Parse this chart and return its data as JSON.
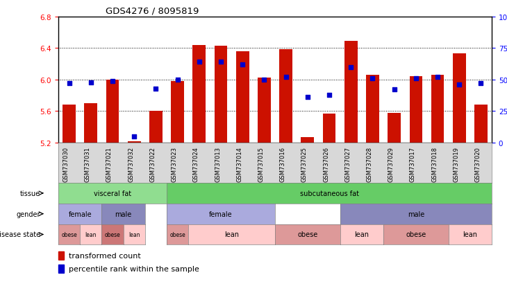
{
  "title": "GDS4276 / 8095819",
  "samples": [
    "GSM737030",
    "GSM737031",
    "GSM737021",
    "GSM737032",
    "GSM737022",
    "GSM737023",
    "GSM737024",
    "GSM737013",
    "GSM737014",
    "GSM737015",
    "GSM737016",
    "GSM737025",
    "GSM737026",
    "GSM737027",
    "GSM737028",
    "GSM737029",
    "GSM737017",
    "GSM737018",
    "GSM737019",
    "GSM737020"
  ],
  "bar_values": [
    5.68,
    5.7,
    6.0,
    5.22,
    5.6,
    5.98,
    6.44,
    6.43,
    6.36,
    6.03,
    6.39,
    5.27,
    5.57,
    6.49,
    6.06,
    5.58,
    6.04,
    6.06,
    6.33,
    5.68
  ],
  "percentile_values": [
    47,
    48,
    49,
    5,
    43,
    50,
    64,
    64,
    62,
    50,
    52,
    36,
    38,
    60,
    51,
    42,
    51,
    52,
    46,
    47
  ],
  "ymin": 5.2,
  "ymax": 6.8,
  "yticks": [
    5.2,
    5.6,
    6.0,
    6.4,
    6.8
  ],
  "pct_ticks": [
    0,
    25,
    50,
    75,
    100
  ],
  "bar_color": "#cc1100",
  "dot_color": "#0000cc",
  "tissue_groups": [
    {
      "label": "visceral fat",
      "start": 0,
      "end": 4,
      "color": "#90dd90"
    },
    {
      "label": "subcutaneous fat",
      "start": 5,
      "end": 19,
      "color": "#66cc66"
    }
  ],
  "gender_groups": [
    {
      "label": "female",
      "start": 0,
      "end": 1,
      "color": "#aaaadd"
    },
    {
      "label": "male",
      "start": 2,
      "end": 3,
      "color": "#8888bb"
    },
    {
      "label": "female",
      "start": 5,
      "end": 9,
      "color": "#aaaadd"
    },
    {
      "label": "male",
      "start": 13,
      "end": 19,
      "color": "#8888bb"
    }
  ],
  "disease_groups": [
    {
      "label": "obese",
      "start": 0,
      "end": 0,
      "color": "#dd9999"
    },
    {
      "label": "lean",
      "start": 1,
      "end": 1,
      "color": "#ffcccc"
    },
    {
      "label": "obese",
      "start": 2,
      "end": 2,
      "color": "#cc7777"
    },
    {
      "label": "lean",
      "start": 3,
      "end": 3,
      "color": "#ffcccc"
    },
    {
      "label": "obese",
      "start": 5,
      "end": 5,
      "color": "#dd9999"
    },
    {
      "label": "lean",
      "start": 6,
      "end": 9,
      "color": "#ffcccc"
    },
    {
      "label": "obese",
      "start": 10,
      "end": 12,
      "color": "#dd9999"
    },
    {
      "label": "lean",
      "start": 13,
      "end": 14,
      "color": "#ffcccc"
    },
    {
      "label": "obese",
      "start": 15,
      "end": 17,
      "color": "#dd9999"
    },
    {
      "label": "lean",
      "start": 18,
      "end": 19,
      "color": "#ffcccc"
    }
  ],
  "row_labels": [
    "tissue",
    "gender",
    "disease state"
  ],
  "legend_items": [
    {
      "label": "transformed count",
      "color": "#cc1100"
    },
    {
      "label": "percentile rank within the sample",
      "color": "#0000cc"
    }
  ]
}
